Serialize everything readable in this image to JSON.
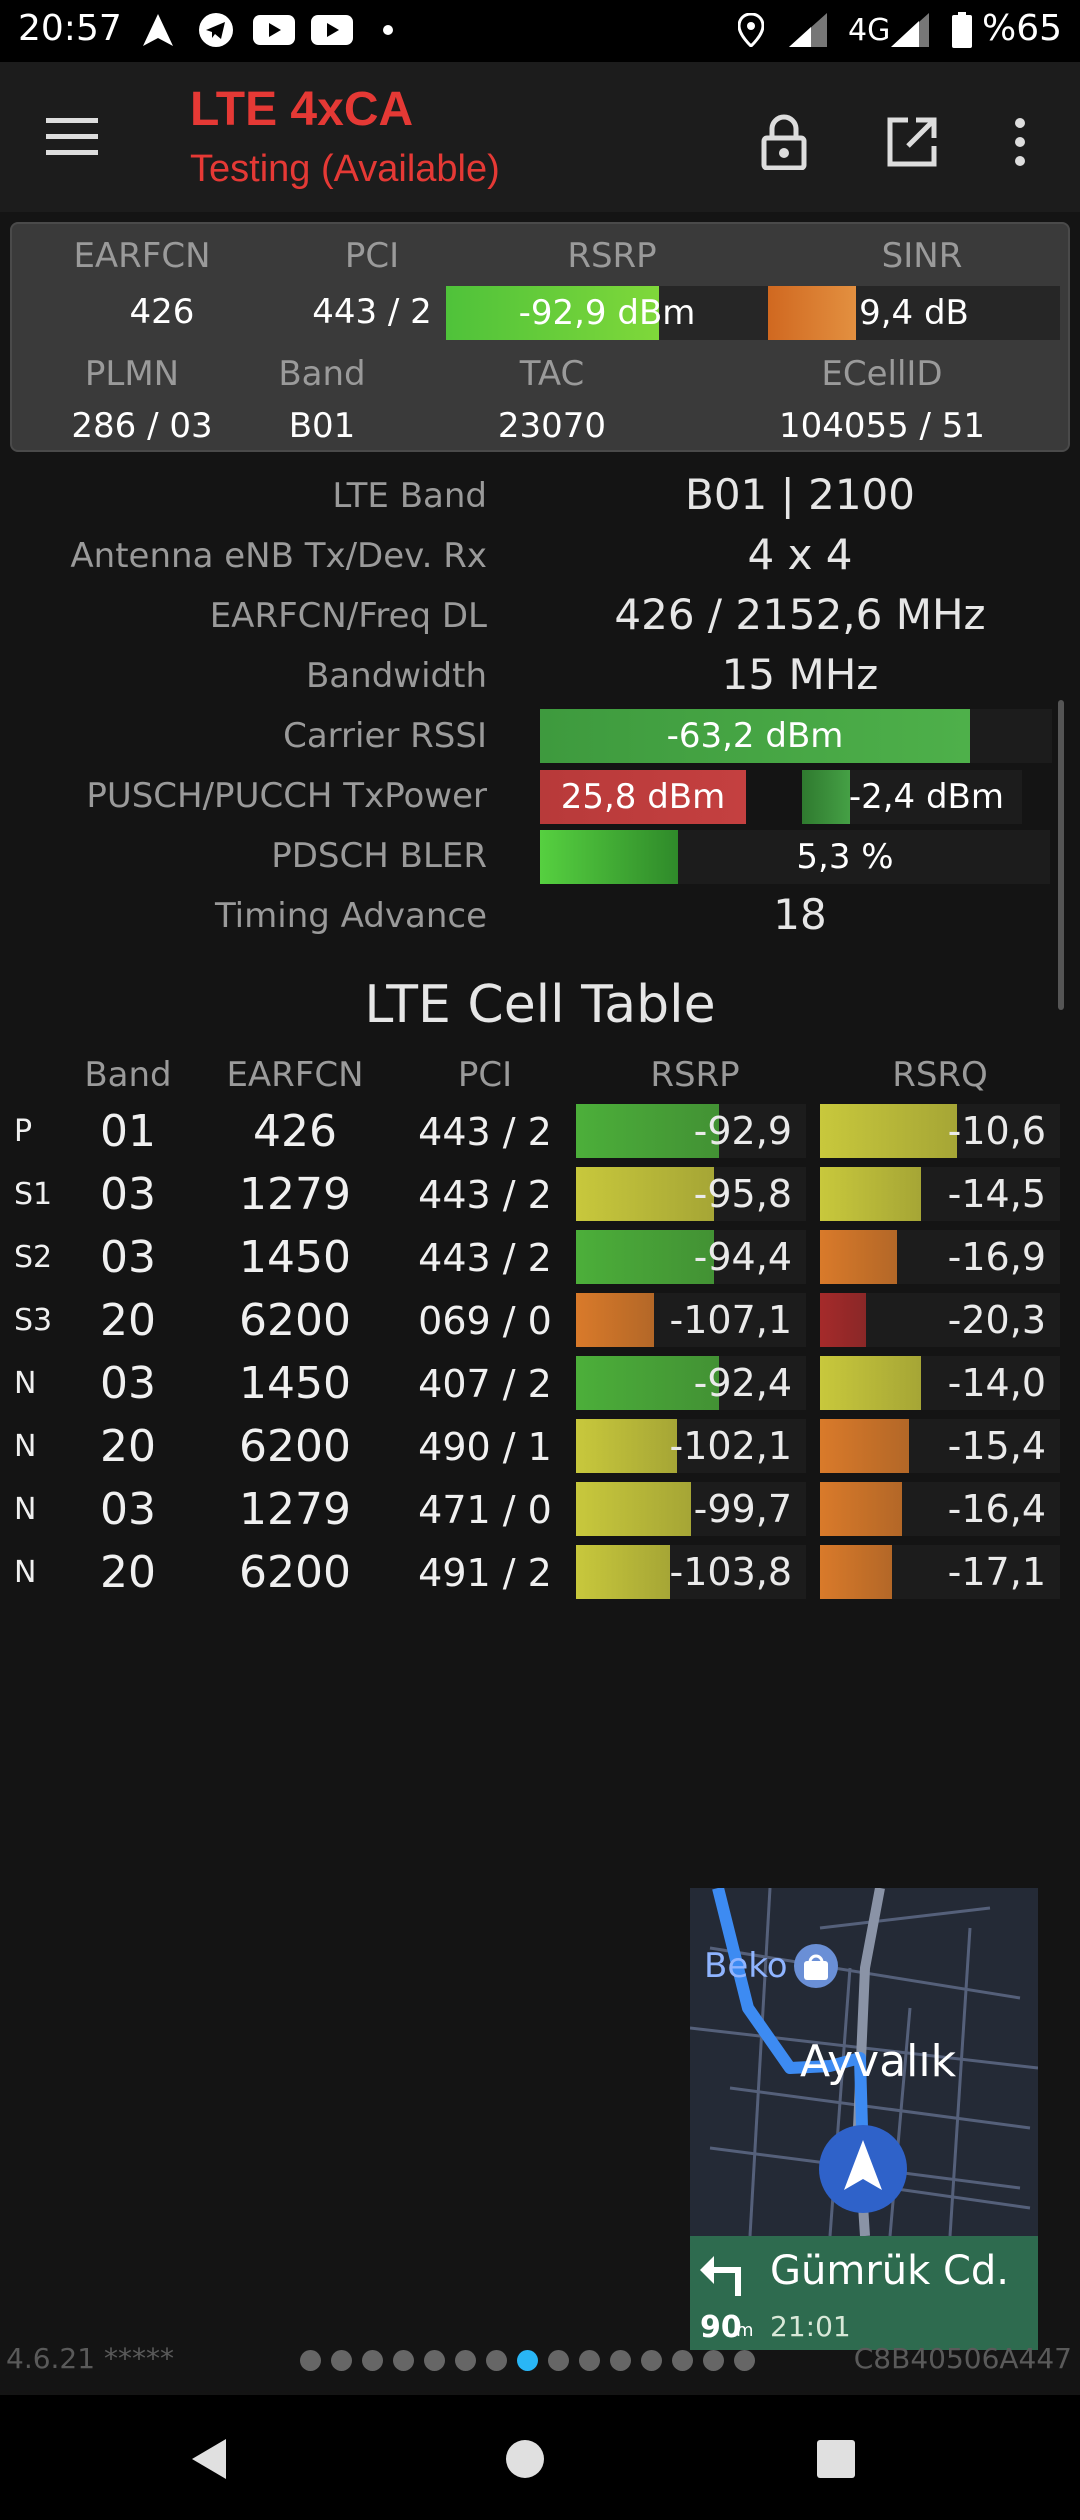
{
  "status_bar": {
    "time": "20:57",
    "network": "4G",
    "battery": "%65",
    "icons": [
      "navigation-arrow-icon",
      "telegram-icon",
      "youtube-icon",
      "youtube-icon",
      "dot-icon",
      "location-icon",
      "signal-icon",
      "signal-icon",
      "battery-icon"
    ]
  },
  "app_bar": {
    "title": "LTE 4xCA",
    "subtitle": "Testing (Available)",
    "actions": [
      "lock-icon",
      "open-external-icon",
      "more-vert-icon"
    ]
  },
  "summary": {
    "earfcn_label": "EARFCN",
    "earfcn": "426",
    "pci_label": "PCI",
    "pci": "443 / 2",
    "rsrp_label": "RSRP",
    "rsrp": "-92,9 dBm",
    "rsrp_level": 0.66,
    "sinr_label": "SINR",
    "sinr": "9,4 dB",
    "sinr_level": 0.3,
    "plmn_label": "PLMN",
    "plmn": "286 / 03",
    "band_label": "Band",
    "band": "B01",
    "tac_label": "TAC",
    "tac": "23070",
    "ecellid_label": "ECellID",
    "ecellid": "104055 / 51"
  },
  "details": {
    "lte_band_label": "LTE Band",
    "lte_band": "B01 | 2100",
    "antenna_label": "Antenna eNB Tx/Dev. Rx",
    "antenna": "4 x 4",
    "freq_label": "EARFCN/Freq DL",
    "freq": "426 / 2152,6 MHz",
    "bandwidth_label": "Bandwidth",
    "bandwidth": "15 MHz",
    "rssi_label": "Carrier RSSI",
    "rssi": "-63,2 dBm",
    "rssi_level": 0.84,
    "txpower_label": "PUSCH/PUCCH TxPower",
    "pusch": "25,8 dBm",
    "pusch_level": 1.0,
    "pucch": "-2,4 dBm",
    "pucch_level": 0.22,
    "bler_label": "PDSCH BLER",
    "bler": "5,3 %",
    "bler_level": 0.27,
    "ta_label": "Timing Advance",
    "ta": "18"
  },
  "cell_table": {
    "title": "LTE Cell Table",
    "headers": {
      "band": "Band",
      "earfcn": "EARFCN",
      "pci": "PCI",
      "rsrp": "RSRP",
      "rsrq": "RSRQ"
    },
    "rows": [
      {
        "type": "P",
        "band": "01",
        "earfcn": "426",
        "pci": "443 / 2",
        "rsrp": "-92,9",
        "rsrp_level": 0.62,
        "rsrp_color": "#4caf3a",
        "rsrq": "-10,6",
        "rsrq_level": 0.57,
        "rsrq_color": "#c8c83c"
      },
      {
        "type": "S1",
        "band": "03",
        "earfcn": "1279",
        "pci": "443 / 2",
        "rsrp": "-95,8",
        "rsrp_level": 0.6,
        "rsrp_color": "#c8c83c",
        "rsrq": "-14,5",
        "rsrq_level": 0.42,
        "rsrq_color": "#c8c83c"
      },
      {
        "type": "S2",
        "band": "03",
        "earfcn": "1450",
        "pci": "443 / 2",
        "rsrp": "-94,4",
        "rsrp_level": 0.6,
        "rsrp_color": "#4caf3a",
        "rsrq": "-16,9",
        "rsrq_level": 0.32,
        "rsrq_color": "#d97a2a"
      },
      {
        "type": "S3",
        "band": "20",
        "earfcn": "6200",
        "pci": "069 / 0",
        "rsrp": "-107,1",
        "rsrp_level": 0.34,
        "rsrp_color": "#d97a2a",
        "rsrq": "-20,3",
        "rsrq_level": 0.19,
        "rsrq_color": "#a52a2a"
      },
      {
        "type": "N",
        "band": "03",
        "earfcn": "1450",
        "pci": "407 / 2",
        "rsrp": "-92,4",
        "rsrp_level": 0.62,
        "rsrp_color": "#4caf3a",
        "rsrq": "-14,0",
        "rsrq_level": 0.42,
        "rsrq_color": "#c8c83c"
      },
      {
        "type": "N",
        "band": "20",
        "earfcn": "6200",
        "pci": "490 / 1",
        "rsrp": "-102,1",
        "rsrp_level": 0.44,
        "rsrp_color": "#c8c83c",
        "rsrq": "-15,4",
        "rsrq_level": 0.37,
        "rsrq_color": "#d97a2a"
      },
      {
        "type": "N",
        "band": "03",
        "earfcn": "1279",
        "pci": "471 / 0",
        "rsrp": "-99,7",
        "rsrp_level": 0.5,
        "rsrp_color": "#c8c83c",
        "rsrq": "-16,4",
        "rsrq_level": 0.34,
        "rsrq_color": "#d97a2a"
      },
      {
        "type": "N",
        "band": "20",
        "earfcn": "6200",
        "pci": "491 / 2",
        "rsrp": "-103,8",
        "rsrp_level": 0.41,
        "rsrp_color": "#c8c83c",
        "rsrq": "-17,1",
        "rsrq_level": 0.3,
        "rsrq_color": "#d97a2a"
      }
    ]
  },
  "map_overlay": {
    "poi": "Beko",
    "city": "Ayvalık",
    "street": "Gümrük Cd.",
    "distance": "90",
    "distance_unit": "m",
    "eta": "21:01"
  },
  "footer": {
    "version": "4.6.21 *****",
    "device_id": "C8B40506A447",
    "page_count": 15,
    "active_page": 7
  }
}
